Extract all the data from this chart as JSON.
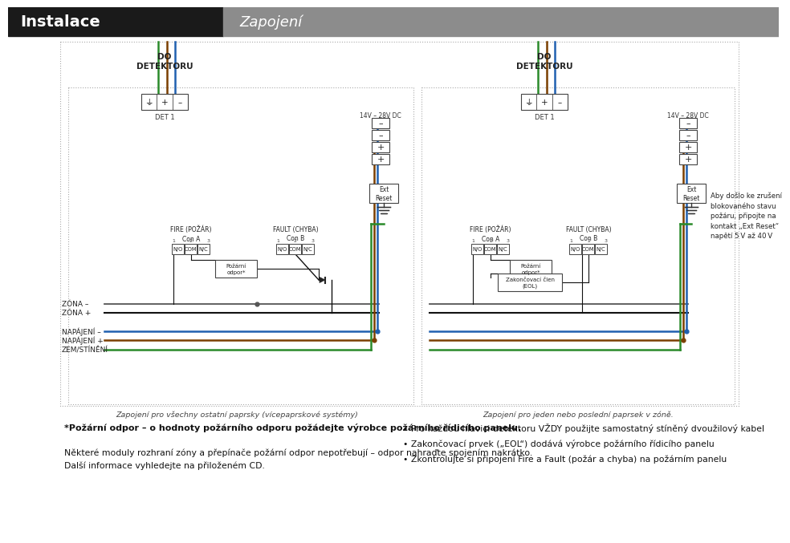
{
  "title_left": "Instalace",
  "title_right": "Zapojení",
  "title_left_bg": "#1a1a1a",
  "title_right_bg": "#8c8c8c",
  "title_text_left_color": "#ffffff",
  "title_text_right_color": "#ffffff",
  "bg_color": "#ffffff",
  "line_blue": "#2060b0",
  "line_brown": "#7B3F00",
  "line_green": "#2a8a2a",
  "line_black": "#111111",
  "line_gray": "#555555",
  "caption_left": "Zapojení pro všechny ostatní paprsky (vícepaprskové systémy)",
  "caption_right": "Zapojení pro jeden nebo poslední paprsek v zóně.",
  "note_bold": "*Požární odpor – o hodnoty požárního odporu požádejte výrobce požárního řídicího panelu.",
  "note_normal1": "Některé moduly rozhraní zóny a přepínače požární odpor nepotřebují – odpor nahraďte spojením nakrátko.",
  "note_normal2": "Další informace vyhledejte na přiloženém CD.",
  "bullet1": "Pro každou hlavici detektoru VŽDY použijte samostatný stíněný dvoužilový kabel",
  "bullet2": "Zakončovací prvek („EOL“) dodává výrobce požárního řídicího panelu",
  "bullet3": "Zkontrolujte si připojení Fire a Fault (požár a chyba) na požárním panelu",
  "label_do_detektoru": "DO\nDETEKTORU",
  "label_det1": "DET 1",
  "label_14v28vdc": "14V – 28V DC",
  "label_fire": "FIRE (POŽÁR)\nCon A",
  "label_fault": "FAULT (CHYBA)\nCon B",
  "label_pozarni_odpor": "Požární\nodpor*",
  "label_ext_reset": "Ext\nReset",
  "label_zona_minus": "ZÓNA –",
  "label_zona_plus": "ZÓNA +",
  "label_napajeni_minus": "NAPÁJENÍ –",
  "label_napajeni_plus": "NAPÁJENÍ +",
  "label_zem": "ZEM/STÍNĚNÍ",
  "label_zakonc": "Zakončovací člen\n(EOL)",
  "note_right_side": "Aby došlo ke zrušení\nblokovaného stavu\npožáru, připojte na\nkontakt „Ext Reset“\nnapětí 5 V až 40 V"
}
